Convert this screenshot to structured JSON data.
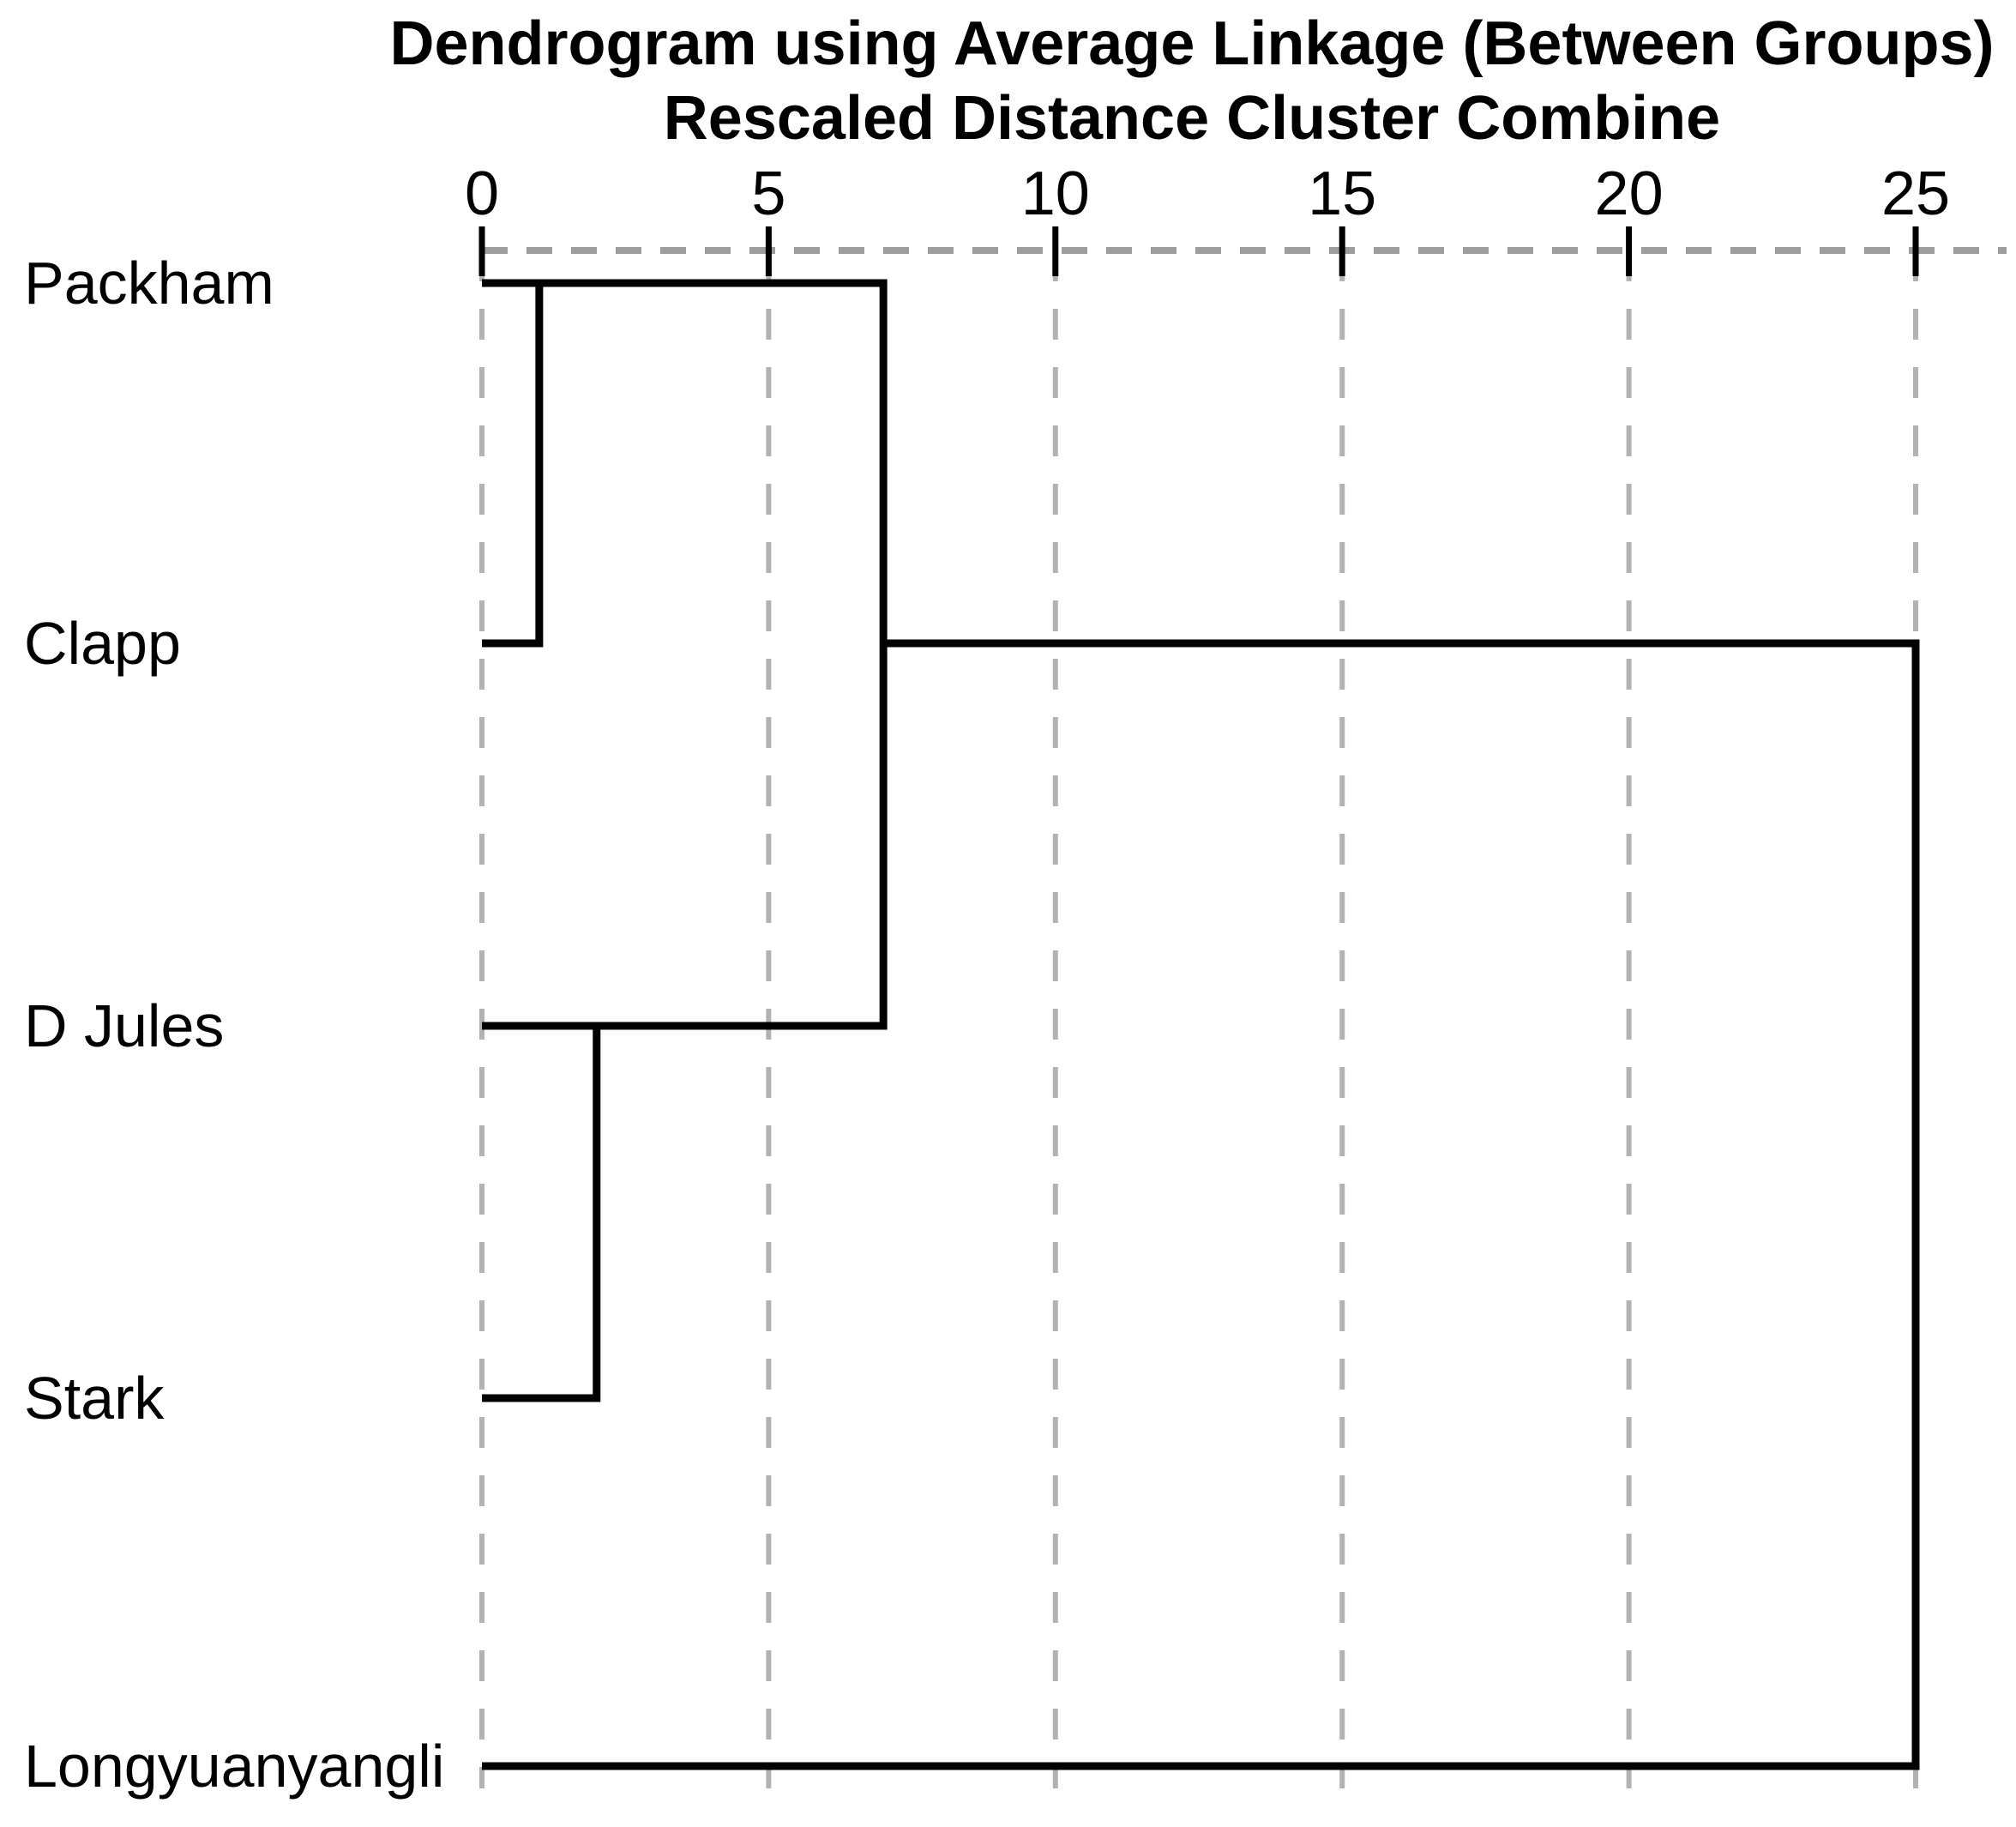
{
  "chart_data": {
    "type": "dendrogram",
    "orientation": "horizontal",
    "title": "Dendrogram using Average Linkage (Between Groups)",
    "subtitle": "Rescaled Distance Cluster Combine",
    "axis": {
      "position": "top",
      "range": [
        0,
        25
      ],
      "ticks": [
        0,
        5,
        10,
        15,
        20,
        25
      ],
      "gridlines": "vertical-dashed"
    },
    "leaves": [
      "Packham",
      "Clapp",
      "D Jules",
      "Stark",
      "Longyuanyangli"
    ],
    "merges": [
      {
        "id": "m0",
        "a": "Packham",
        "b": "Clapp",
        "distance": 1
      },
      {
        "id": "m1",
        "a": "D Jules",
        "b": "Stark",
        "distance": 2
      },
      {
        "id": "m2",
        "a": "m0",
        "b": "m1",
        "distance": 7
      },
      {
        "id": "m3",
        "a": "m2",
        "b": "Longyuanyangli",
        "distance": 25
      }
    ],
    "colors": {
      "line": "#000000",
      "grid": "#b2b2b2",
      "axis_dash": "#9d9d9d",
      "text": "#000000",
      "background": "#ffffff"
    }
  }
}
